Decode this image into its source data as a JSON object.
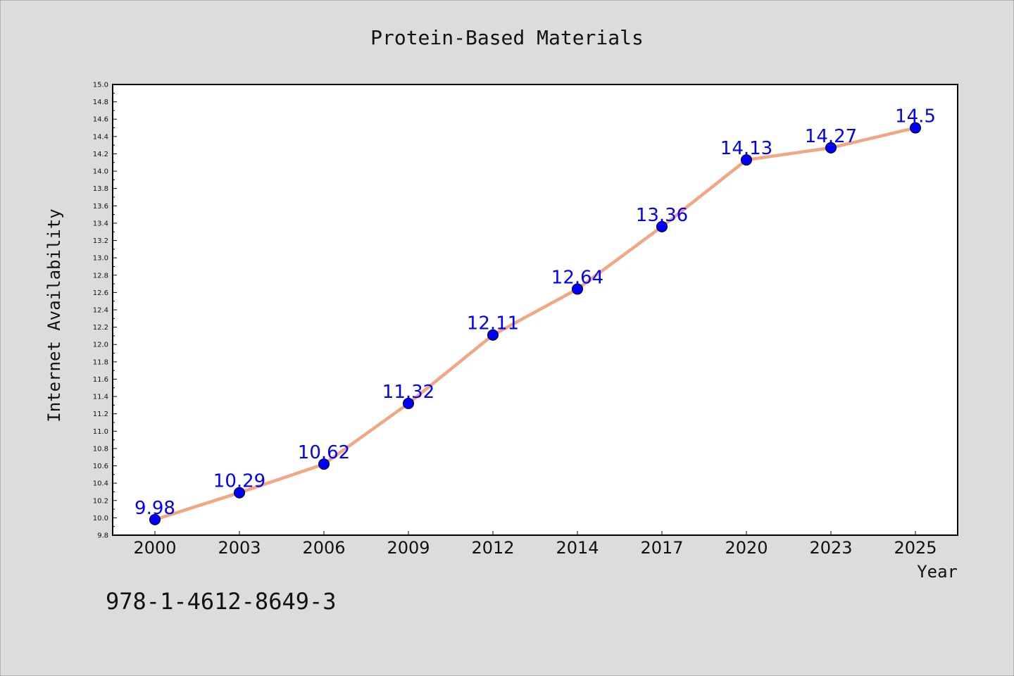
{
  "chart_data": {
    "type": "line",
    "title": "Protein-Based Materials",
    "xlabel": "Year",
    "ylabel": "Internet Availability",
    "categories": [
      "2000",
      "2003",
      "2006",
      "2009",
      "2012",
      "2014",
      "2017",
      "2020",
      "2023",
      "2025"
    ],
    "series": [
      {
        "values": [
          9.98,
          10.29,
          10.62,
          11.32,
          12.11,
          12.64,
          13.36,
          14.13,
          14.27,
          14.5
        ],
        "labels": [
          "9.98",
          "10.29",
          "10.62",
          "11.32",
          "12.11",
          "12.64",
          "13.36",
          "14.13",
          "14.27",
          "14.5"
        ],
        "line_color": "#f4a582",
        "marker_color": "#0000ff",
        "label_color": "#0000ff"
      }
    ],
    "ylim": [
      9.8,
      15.0
    ],
    "yticks": [
      "9.8",
      "10.0",
      "10.2",
      "10.4",
      "10.6",
      "10.8",
      "11.0",
      "11.2",
      "11.4",
      "11.6",
      "11.8",
      "12.0",
      "12.2",
      "12.4",
      "12.6",
      "12.8",
      "13.0",
      "13.2",
      "13.4",
      "13.6",
      "13.8",
      "14.0",
      "14.2",
      "14.4",
      "14.6",
      "14.8",
      "15.0"
    ],
    "grid": false,
    "legend": "none"
  },
  "annotation": {
    "isbn": "978-1-4612-8649-3"
  },
  "colors": {
    "background": "#dcdcdc",
    "plot_background": "#ffffff"
  }
}
